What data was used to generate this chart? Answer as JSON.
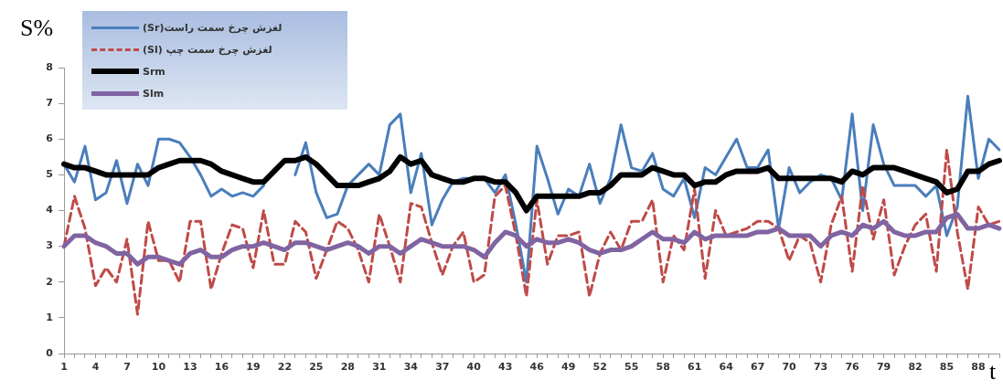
{
  "chart_data": {
    "type": "line",
    "ylabel": "S%",
    "xlabel": "t",
    "categories": [
      "1",
      null,
      null,
      "4",
      null,
      null,
      "7",
      null,
      null,
      "10",
      null,
      null,
      "13",
      null,
      null,
      "16",
      null,
      null,
      "19",
      null,
      null,
      "22",
      null,
      null,
      "25",
      null,
      null,
      "28",
      null,
      null,
      "31",
      null,
      null,
      "34",
      null,
      null,
      "37",
      null,
      null,
      "40",
      null,
      null,
      "43",
      null,
      null,
      "46",
      null,
      null,
      "49",
      null,
      null,
      "52",
      null,
      null,
      "55",
      null,
      null,
      "58",
      null,
      null,
      "61",
      null,
      null,
      "64",
      null,
      null,
      "67",
      null,
      null,
      "70",
      null,
      null,
      "73",
      null,
      null,
      "76",
      null,
      null,
      "79",
      null,
      null,
      "82",
      null,
      null,
      "85",
      null,
      null,
      "88",
      null,
      null
    ],
    "series": [
      {
        "name": "لغزش چرخ سمت راست(Sr)",
        "color": "#4a7ebb",
        "line_style": "solid",
        "values": [
          5.3,
          4.8,
          5.8,
          4.3,
          4.5,
          5.4,
          4.2,
          5.3,
          4.7,
          6.0,
          6.0,
          5.9,
          5.5,
          5.0,
          4.4,
          4.6,
          4.4,
          4.5,
          4.4,
          4.7,
          null,
          null,
          5.0,
          5.9,
          4.5,
          3.8,
          3.9,
          4.7,
          5.0,
          5.3,
          5.0,
          6.4,
          6.7,
          4.5,
          5.6,
          3.6,
          4.3,
          4.8,
          4.9,
          4.9,
          4.9,
          4.5,
          5.0,
          3.6,
          2.0,
          5.8,
          4.9,
          3.9,
          4.6,
          4.4,
          5.3,
          4.2,
          4.9,
          6.4,
          5.2,
          5.1,
          5.6,
          4.6,
          4.4,
          4.9,
          3.8,
          5.2,
          5.0,
          5.5,
          6.0,
          5.2,
          5.2,
          5.7,
          3.5,
          5.2,
          4.5,
          4.8,
          5.0,
          4.9,
          4.3,
          6.7,
          4.0,
          6.4,
          5.3,
          4.7,
          4.7,
          4.7,
          4.4,
          4.7,
          3.3,
          4.1,
          7.2,
          4.9,
          6.0,
          5.7
        ]
      },
      {
        "name": "لغزش چرخ سمت چپ (Sl)",
        "color": "#be4b48",
        "line_style": "dashed",
        "values": [
          3.0,
          4.4,
          3.5,
          1.9,
          2.4,
          2.0,
          3.2,
          1.1,
          3.7,
          2.6,
          2.6,
          2.0,
          3.7,
          3.7,
          1.8,
          2.8,
          3.6,
          3.5,
          2.4,
          4.0,
          2.5,
          2.5,
          3.7,
          3.4,
          2.1,
          2.9,
          3.7,
          3.5,
          2.9,
          2.0,
          3.9,
          3.0,
          2.0,
          4.2,
          4.1,
          3.1,
          2.2,
          3.0,
          3.4,
          2.0,
          2.2,
          4.4,
          4.7,
          3.3,
          1.6,
          4.3,
          2.5,
          3.3,
          3.3,
          3.4,
          1.6,
          2.8,
          3.4,
          2.9,
          3.7,
          3.7,
          4.3,
          2.0,
          3.3,
          2.9,
          4.6,
          2.1,
          4.0,
          3.3,
          3.4,
          3.5,
          3.7,
          3.7,
          3.5,
          2.6,
          3.3,
          3.1,
          2.0,
          3.6,
          4.4,
          2.3,
          4.7,
          3.2,
          4.3,
          2.2,
          3.0,
          3.6,
          3.9,
          2.3,
          5.7,
          3.4,
          1.8,
          4.1,
          3.6,
          3.7
        ]
      },
      {
        "name": "Srm",
        "color": "#000000",
        "line_style": "solid",
        "values": [
          5.3,
          5.2,
          5.2,
          5.1,
          5.0,
          5.0,
          5.0,
          5.0,
          5.0,
          5.2,
          5.3,
          5.4,
          5.4,
          5.4,
          5.3,
          5.1,
          5.0,
          4.9,
          4.8,
          4.8,
          5.1,
          5.4,
          5.4,
          5.5,
          5.3,
          5.0,
          4.7,
          4.7,
          4.7,
          4.8,
          4.9,
          5.1,
          5.5,
          5.3,
          5.4,
          5.0,
          4.9,
          4.8,
          4.8,
          4.9,
          4.9,
          4.8,
          4.8,
          4.5,
          4.0,
          4.4,
          4.4,
          4.4,
          4.4,
          4.4,
          4.5,
          4.5,
          4.7,
          5.0,
          5.0,
          5.0,
          5.2,
          5.1,
          5.0,
          5.0,
          4.7,
          4.8,
          4.8,
          5.0,
          5.1,
          5.1,
          5.1,
          5.2,
          4.9,
          4.9,
          4.9,
          4.9,
          4.9,
          4.9,
          4.8,
          5.1,
          5.0,
          5.2,
          5.2,
          5.2,
          5.1,
          5.0,
          4.9,
          4.8,
          4.5,
          4.6,
          5.1,
          5.1,
          5.3,
          5.4
        ]
      },
      {
        "name": "Slm",
        "color": "#8064a2",
        "line_style": "solid",
        "values": [
          3.0,
          3.3,
          3.3,
          3.1,
          3.0,
          2.8,
          2.8,
          2.5,
          2.7,
          2.7,
          2.6,
          2.5,
          2.8,
          2.9,
          2.7,
          2.7,
          2.9,
          3.0,
          3.0,
          3.1,
          3.0,
          2.9,
          3.1,
          3.1,
          3.0,
          2.9,
          3.0,
          3.1,
          3.0,
          2.8,
          3.0,
          3.0,
          2.8,
          3.0,
          3.2,
          3.1,
          3.0,
          3.0,
          3.0,
          2.9,
          2.7,
          3.1,
          3.4,
          3.3,
          3.0,
          3.2,
          3.1,
          3.1,
          3.2,
          3.1,
          2.9,
          2.8,
          2.9,
          2.9,
          3.0,
          3.2,
          3.4,
          3.2,
          3.2,
          3.1,
          3.4,
          3.2,
          3.3,
          3.3,
          3.3,
          3.3,
          3.4,
          3.4,
          3.5,
          3.3,
          3.3,
          3.3,
          3.0,
          3.3,
          3.4,
          3.3,
          3.6,
          3.5,
          3.7,
          3.4,
          3.3,
          3.3,
          3.4,
          3.4,
          3.8,
          3.9,
          3.5,
          3.5,
          3.6,
          3.5
        ]
      }
    ],
    "ylim": [
      0,
      8
    ],
    "yticks": [
      0,
      1,
      2,
      3,
      4,
      5,
      6,
      7,
      8
    ],
    "grid": false,
    "legend": "top left"
  }
}
